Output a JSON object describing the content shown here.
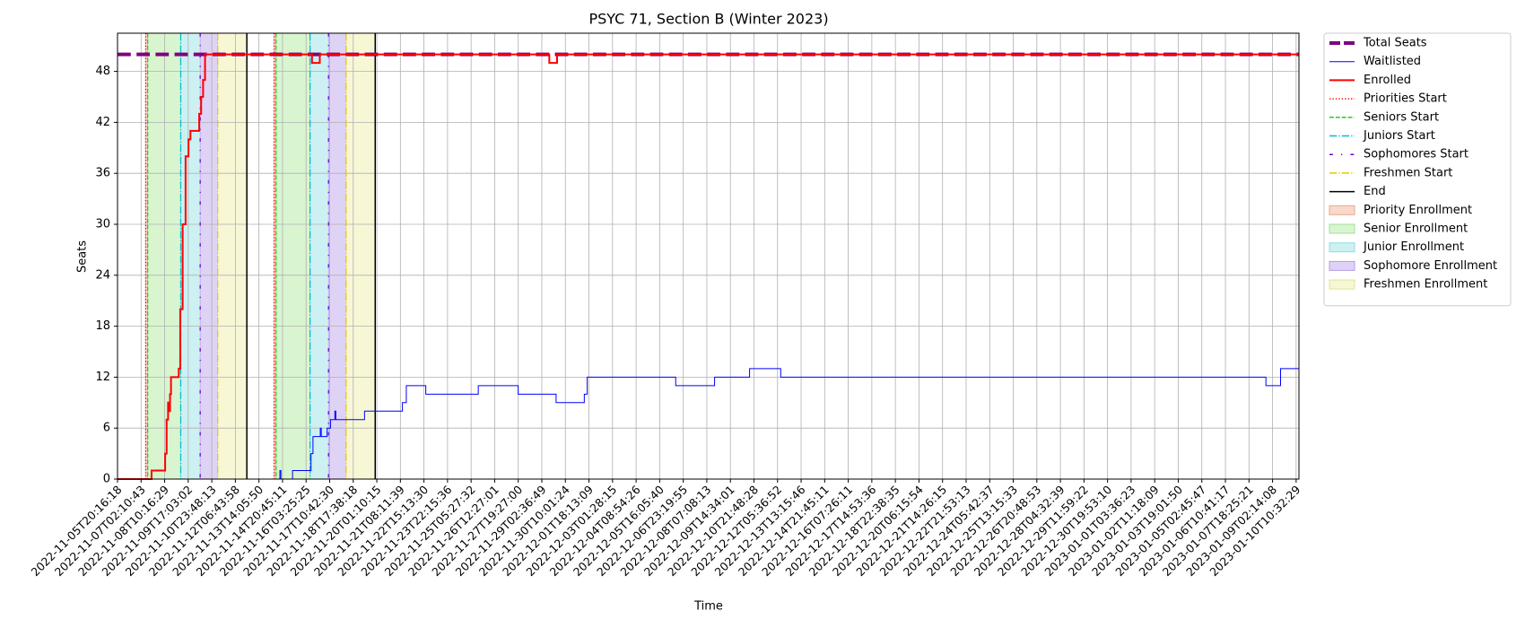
{
  "chart_data": {
    "type": "step",
    "title": "PSYC 71, Section B (Winter 2023)",
    "x_label": "Time",
    "y_label": "Seats",
    "grid": true,
    "legend": "outside-upper-right",
    "xlim": [
      "2022-11-05T20:16:18",
      "2023-01-10T14:24:00"
    ],
    "xticks": [
      "2022-11-05T20:16:18",
      "2022-11-07T02:10:43",
      "2022-11-08T10:16:29",
      "2022-11-09T17:03:02",
      "2022-11-10T23:48:13",
      "2022-11-12T06:43:58",
      "2022-11-13T14:05:50",
      "2022-11-14T20:45:11",
      "2022-11-16T03:25:25",
      "2022-11-17T10:42:30",
      "2022-11-18T17:38:18",
      "2022-11-20T01:10:15",
      "2022-11-21T08:11:39",
      "2022-11-22T15:13:30",
      "2022-11-23T22:15:36",
      "2022-11-25T05:27:32",
      "2022-11-26T12:27:01",
      "2022-11-27T19:27:00",
      "2022-11-29T02:36:49",
      "2022-11-30T10:01:24",
      "2022-12-01T18:13:09",
      "2022-12-03T01:28:15",
      "2022-12-04T08:54:26",
      "2022-12-05T16:05:40",
      "2022-12-06T23:19:55",
      "2022-12-08T07:08:13",
      "2022-12-09T14:34:01",
      "2022-12-10T21:48:28",
      "2022-12-12T05:36:52",
      "2022-12-13T13:15:46",
      "2022-12-14T21:45:11",
      "2022-12-16T07:26:11",
      "2022-12-17T14:53:36",
      "2022-12-18T22:38:35",
      "2022-12-20T06:15:54",
      "2022-12-21T14:26:15",
      "2022-12-22T21:53:13",
      "2022-12-24T05:42:37",
      "2022-12-25T13:15:33",
      "2022-12-26T20:48:53",
      "2022-12-28T04:32:39",
      "2022-12-29T11:59:22",
      "2022-12-30T19:53:10",
      "2023-01-01T03:36:23",
      "2023-01-02T11:18:09",
      "2023-01-03T19:01:50",
      "2023-01-05T02:45:47",
      "2023-01-06T10:41:17",
      "2023-01-07T18:25:21",
      "2023-01-09T02:14:08",
      "2023-01-10T10:32:29"
    ],
    "ylim": [
      0,
      52.5
    ],
    "yticks": [
      0,
      6,
      12,
      18,
      24,
      30,
      36,
      42,
      48
    ],
    "series": [
      {
        "name": "Total Seats",
        "color": "#800080",
        "linestyle": "dashed",
        "linewidth": 4,
        "x": [
          "2022-11-05T20:16:18",
          "2023-01-10T14:24:00"
        ],
        "values": [
          50,
          50
        ]
      },
      {
        "name": "Waitlisted",
        "color": "#0000ff",
        "linestyle": "solid",
        "linewidth": 1,
        "x": [
          "2022-11-05T20:16:18",
          "2022-11-14T17:21:00",
          "2022-11-14T18:39:00",
          "2022-11-15T09:49:00",
          "2022-11-16T10:00:00",
          "2022-11-16T12:33:00",
          "2022-11-16T22:15:00",
          "2022-11-16T23:33:00",
          "2022-11-17T07:16:00",
          "2022-11-17T11:47:00",
          "2022-11-17T17:31:00",
          "2022-11-17T18:49:00",
          "2022-11-19T08:44:00",
          "2022-11-21T10:54:00",
          "2022-11-21T16:00:00",
          "2022-11-22T17:37:00",
          "2022-11-25T14:54:00",
          "2022-11-27T19:21:00",
          "2022-11-29T21:39:00",
          "2022-12-01T11:51:00",
          "2022-12-01T15:50:00",
          "2022-12-06T13:20:00",
          "2022-12-08T17:30:00",
          "2022-12-10T16:00:00",
          "2022-12-12T09:53:00",
          "2023-01-08T17:17:00",
          "2023-01-09T13:12:00",
          "2023-01-10T14:24:00"
        ],
        "values": [
          0,
          1,
          0,
          1,
          3,
          5,
          6,
          5,
          6,
          7,
          8,
          7,
          8,
          9,
          11,
          10,
          11,
          10,
          9,
          10,
          12,
          11,
          12,
          13,
          12,
          11,
          13,
          13
        ]
      },
      {
        "name": "Enrolled",
        "color": "#ff0000",
        "linestyle": "solid",
        "linewidth": 2,
        "x": [
          "2022-11-05T20:16:18",
          "2022-11-07T16:26:00",
          "2022-11-08T10:55:00",
          "2022-11-08T12:50:00",
          "2022-11-08T14:44:00",
          "2022-11-08T16:00:00",
          "2022-11-08T17:17:00",
          "2022-11-08T18:33:00",
          "2022-11-09T04:42:00",
          "2022-11-09T06:37:00",
          "2022-11-09T09:46:00",
          "2022-11-09T13:35:00",
          "2022-11-09T17:24:00",
          "2022-11-09T19:57:00",
          "2022-11-10T07:21:00",
          "2022-11-10T09:53:00",
          "2022-11-10T12:26:00",
          "2022-11-10T14:59:00",
          "2022-11-16T11:17:00",
          "2022-11-16T21:36:00",
          "2022-11-29T12:35:00",
          "2022-11-29T22:57:00",
          "2023-01-10T14:24:00"
        ],
        "values": [
          0,
          1,
          3,
          7,
          9,
          8,
          10,
          12,
          13,
          20,
          30,
          38,
          40,
          41,
          43,
          45,
          47,
          50,
          49,
          50,
          49,
          50,
          50
        ]
      }
    ],
    "markers": [
      {
        "name": "Priorities Start",
        "color": "#ff0000",
        "linestyle": "dotted",
        "x": [
          "2022-11-07T08:28:00",
          "2022-11-14T09:46:00"
        ]
      },
      {
        "name": "Seniors Start",
        "color": "#22cc22",
        "linestyle": "dashed",
        "x": [
          "2022-11-07T11:08:00",
          "2022-11-14T12:17:00"
        ]
      },
      {
        "name": "Juniors Start",
        "color": "#00bfcf",
        "linestyle": "dashdot",
        "x": [
          "2022-11-09T07:15:00",
          "2022-11-16T08:41:00"
        ]
      },
      {
        "name": "Sophomores Start",
        "color": "#6a00d8",
        "linestyle": "loosely-dashdotted",
        "x": [
          "2022-11-10T08:38:00",
          "2022-11-17T09:11:00"
        ]
      },
      {
        "name": "Freshmen Start",
        "color": "#e6c800",
        "linestyle": "dashdot",
        "x": [
          "2022-11-11T07:30:00",
          "2022-11-18T08:12:00"
        ]
      },
      {
        "name": "End",
        "color": "#000000",
        "linestyle": "solid",
        "x": [
          "2022-11-12T22:00:00",
          "2022-11-19T23:02:00"
        ]
      }
    ],
    "regions": [
      {
        "name": "Priority Enrollment",
        "color": "#f8d9cc",
        "edge": "#e8a890"
      },
      {
        "name": "Senior Enrollment",
        "color": "#d8f5d0",
        "edge": "#9fe09a"
      },
      {
        "name": "Junior Enrollment",
        "color": "#cdf1f3",
        "edge": "#8ddde3"
      },
      {
        "name": "Sophomore Enrollment",
        "color": "#dfd3f5",
        "edge": "#b49ce6"
      },
      {
        "name": "Freshmen Enrollment",
        "color": "#f7f7d6",
        "edge": "#e3e39a"
      }
    ]
  }
}
